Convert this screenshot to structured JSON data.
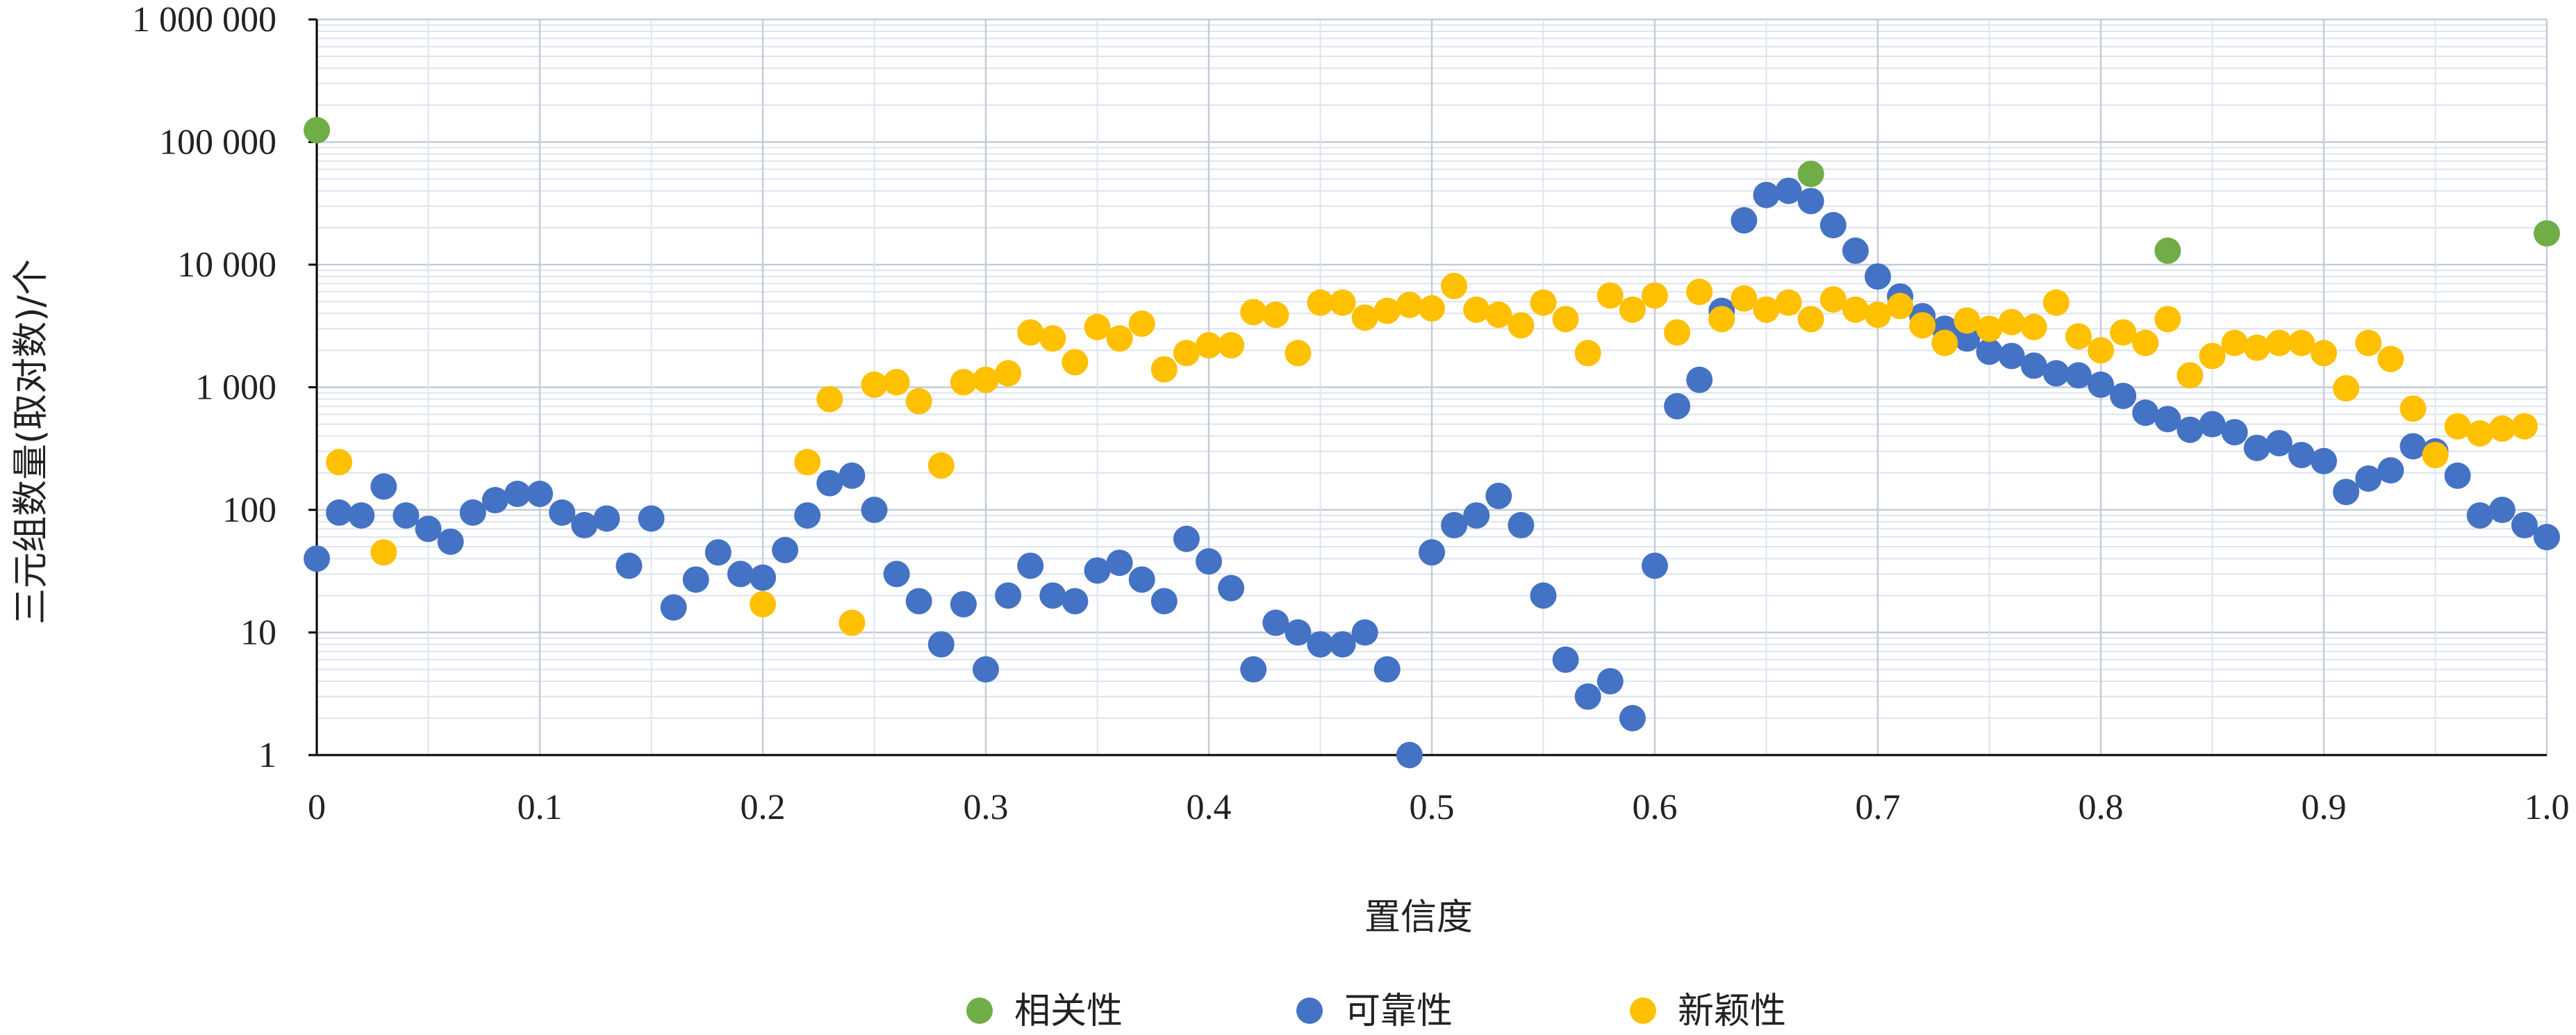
{
  "chart_data": {
    "type": "scatter",
    "xlabel": "置信度",
    "ylabel": "三元组数量(取对数)/个",
    "x_ticks": [
      "0",
      "0.1",
      "0.2",
      "0.3",
      "0.4",
      "0.5",
      "0.6",
      "0.7",
      "0.8",
      "0.9",
      "1.0"
    ],
    "y_ticks": [
      "1",
      "10",
      "100",
      "1 000",
      "10 000",
      "100 000",
      "1 000 000"
    ],
    "xlim": [
      0,
      1
    ],
    "ylim": [
      1,
      1000000
    ],
    "yscale": "log",
    "grid": true,
    "legend": "bottom",
    "series": [
      {
        "name": "相关性",
        "color": "#70ad47",
        "points": [
          [
            0.0,
            125000
          ],
          [
            0.67,
            55000
          ],
          [
            0.83,
            13000
          ],
          [
            1.0,
            18000
          ]
        ]
      },
      {
        "name": "可靠性",
        "color": "#4472c4",
        "points": [
          [
            0.0,
            40
          ],
          [
            0.01,
            95
          ],
          [
            0.02,
            90
          ],
          [
            0.03,
            155
          ],
          [
            0.04,
            90
          ],
          [
            0.05,
            70
          ],
          [
            0.06,
            55
          ],
          [
            0.07,
            95
          ],
          [
            0.08,
            120
          ],
          [
            0.09,
            135
          ],
          [
            0.1,
            135
          ],
          [
            0.11,
            95
          ],
          [
            0.12,
            75
          ],
          [
            0.13,
            85
          ],
          [
            0.14,
            35
          ],
          [
            0.15,
            85
          ],
          [
            0.16,
            16
          ],
          [
            0.17,
            27
          ],
          [
            0.18,
            45
          ],
          [
            0.19,
            30
          ],
          [
            0.2,
            28
          ],
          [
            0.21,
            47
          ],
          [
            0.22,
            90
          ],
          [
            0.23,
            165
          ],
          [
            0.24,
            190
          ],
          [
            0.25,
            100
          ],
          [
            0.26,
            30
          ],
          [
            0.27,
            18
          ],
          [
            0.28,
            8
          ],
          [
            0.29,
            17
          ],
          [
            0.3,
            5
          ],
          [
            0.31,
            20
          ],
          [
            0.32,
            35
          ],
          [
            0.33,
            20
          ],
          [
            0.34,
            18
          ],
          [
            0.35,
            32
          ],
          [
            0.36,
            37
          ],
          [
            0.37,
            27
          ],
          [
            0.38,
            18
          ],
          [
            0.39,
            58
          ],
          [
            0.4,
            38
          ],
          [
            0.41,
            23
          ],
          [
            0.42,
            5
          ],
          [
            0.43,
            12
          ],
          [
            0.44,
            10
          ],
          [
            0.45,
            8
          ],
          [
            0.46,
            8
          ],
          [
            0.47,
            10
          ],
          [
            0.48,
            5
          ],
          [
            0.49,
            1
          ],
          [
            0.5,
            45
          ],
          [
            0.51,
            75
          ],
          [
            0.52,
            90
          ],
          [
            0.53,
            130
          ],
          [
            0.54,
            75
          ],
          [
            0.55,
            20
          ],
          [
            0.56,
            6
          ],
          [
            0.57,
            3
          ],
          [
            0.58,
            4
          ],
          [
            0.59,
            2
          ],
          [
            0.6,
            35
          ],
          [
            0.61,
            700
          ],
          [
            0.62,
            1150
          ],
          [
            0.63,
            4200
          ],
          [
            0.64,
            23000
          ],
          [
            0.65,
            37000
          ],
          [
            0.66,
            40000
          ],
          [
            0.67,
            33000
          ],
          [
            0.68,
            21000
          ],
          [
            0.69,
            13000
          ],
          [
            0.7,
            8000
          ],
          [
            0.71,
            5500
          ],
          [
            0.72,
            3800
          ],
          [
            0.73,
            3000
          ],
          [
            0.74,
            2500
          ],
          [
            0.75,
            1950
          ],
          [
            0.76,
            1800
          ],
          [
            0.77,
            1500
          ],
          [
            0.78,
            1300
          ],
          [
            0.79,
            1250
          ],
          [
            0.8,
            1050
          ],
          [
            0.81,
            850
          ],
          [
            0.82,
            620
          ],
          [
            0.83,
            550
          ],
          [
            0.84,
            450
          ],
          [
            0.85,
            500
          ],
          [
            0.86,
            430
          ],
          [
            0.87,
            320
          ],
          [
            0.88,
            350
          ],
          [
            0.89,
            280
          ],
          [
            0.9,
            250
          ],
          [
            0.91,
            140
          ],
          [
            0.92,
            180
          ],
          [
            0.93,
            210
          ],
          [
            0.94,
            330
          ],
          [
            0.95,
            300
          ],
          [
            0.96,
            190
          ],
          [
            0.97,
            90
          ],
          [
            0.98,
            100
          ],
          [
            0.99,
            75
          ],
          [
            1.0,
            60
          ]
        ]
      },
      {
        "name": "新颖性",
        "color": "#ffc000",
        "points": [
          [
            0.01,
            245
          ],
          [
            0.03,
            45
          ],
          [
            0.2,
            17
          ],
          [
            0.22,
            245
          ],
          [
            0.23,
            800
          ],
          [
            0.24,
            12
          ],
          [
            0.25,
            1050
          ],
          [
            0.26,
            1100
          ],
          [
            0.27,
            770
          ],
          [
            0.28,
            230
          ],
          [
            0.29,
            1100
          ],
          [
            0.3,
            1150
          ],
          [
            0.31,
            1300
          ],
          [
            0.32,
            2800
          ],
          [
            0.33,
            2500
          ],
          [
            0.34,
            1600
          ],
          [
            0.35,
            3100
          ],
          [
            0.36,
            2500
          ],
          [
            0.37,
            3300
          ],
          [
            0.38,
            1400
          ],
          [
            0.39,
            1900
          ],
          [
            0.4,
            2200
          ],
          [
            0.41,
            2200
          ],
          [
            0.42,
            4100
          ],
          [
            0.43,
            3900
          ],
          [
            0.44,
            1900
          ],
          [
            0.45,
            4900
          ],
          [
            0.46,
            4900
          ],
          [
            0.47,
            3700
          ],
          [
            0.48,
            4200
          ],
          [
            0.49,
            4700
          ],
          [
            0.5,
            4400
          ],
          [
            0.51,
            6700
          ],
          [
            0.52,
            4300
          ],
          [
            0.53,
            3900
          ],
          [
            0.54,
            3200
          ],
          [
            0.55,
            4900
          ],
          [
            0.56,
            3600
          ],
          [
            0.57,
            1900
          ],
          [
            0.58,
            5600
          ],
          [
            0.59,
            4300
          ],
          [
            0.6,
            5600
          ],
          [
            0.61,
            2800
          ],
          [
            0.62,
            6000
          ],
          [
            0.63,
            3600
          ],
          [
            0.64,
            5300
          ],
          [
            0.65,
            4300
          ],
          [
            0.66,
            4900
          ],
          [
            0.67,
            3600
          ],
          [
            0.68,
            5200
          ],
          [
            0.69,
            4300
          ],
          [
            0.7,
            3900
          ],
          [
            0.71,
            4600
          ],
          [
            0.72,
            3200
          ],
          [
            0.73,
            2300
          ],
          [
            0.74,
            3500
          ],
          [
            0.75,
            3000
          ],
          [
            0.76,
            3400
          ],
          [
            0.77,
            3100
          ],
          [
            0.78,
            4900
          ],
          [
            0.79,
            2600
          ],
          [
            0.8,
            2000
          ],
          [
            0.81,
            2800
          ],
          [
            0.82,
            2300
          ],
          [
            0.83,
            3600
          ],
          [
            0.84,
            1250
          ],
          [
            0.85,
            1800
          ],
          [
            0.86,
            2300
          ],
          [
            0.87,
            2100
          ],
          [
            0.88,
            2300
          ],
          [
            0.89,
            2300
          ],
          [
            0.9,
            1900
          ],
          [
            0.91,
            980
          ],
          [
            0.92,
            2300
          ],
          [
            0.93,
            1700
          ],
          [
            0.94,
            670
          ],
          [
            0.95,
            280
          ],
          [
            0.96,
            480
          ],
          [
            0.97,
            420
          ],
          [
            0.98,
            460
          ],
          [
            0.99,
            480
          ]
        ]
      }
    ]
  }
}
